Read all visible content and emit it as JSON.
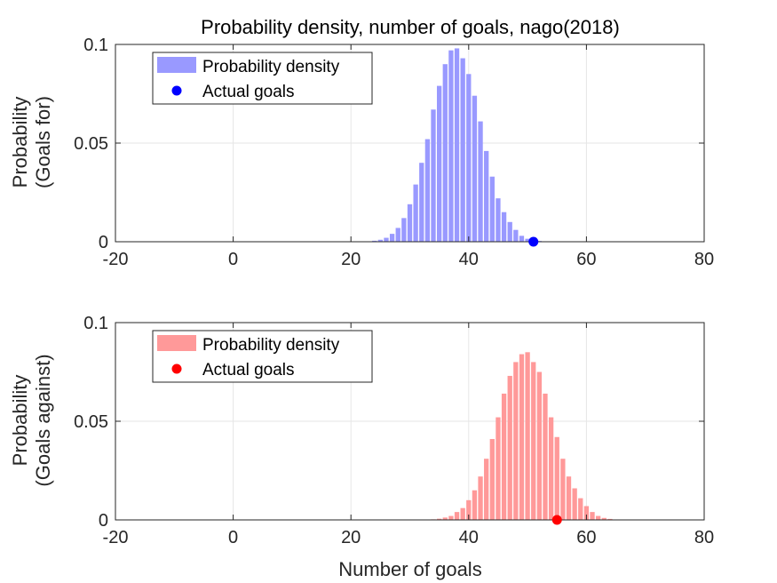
{
  "title": "Probability density, number of goals, nago(2018)",
  "xlabel": "Number of goals",
  "chart_data": [
    {
      "type": "bar",
      "ylabel_lines": [
        "Probability",
        "(Goals for)"
      ],
      "xlim": [
        -20,
        80
      ],
      "ylim": [
        0,
        0.1
      ],
      "xticks": [
        "-20",
        "0",
        "20",
        "40",
        "60",
        "80"
      ],
      "xtick_values": [
        -20,
        0,
        20,
        40,
        60,
        80
      ],
      "yticks": [
        "0",
        "0.05",
        "0.1"
      ],
      "ytick_values": [
        0,
        0.05,
        0.1
      ],
      "grid": true,
      "legend_position": "top-left",
      "bar_color": "#9999ff",
      "point_color": "#0000ff",
      "legend": [
        "Probability density",
        "Actual goals"
      ],
      "series": [
        {
          "name": "Probability density",
          "x": [
            24,
            25,
            26,
            27,
            28,
            29,
            30,
            31,
            32,
            33,
            34,
            35,
            36,
            37,
            38,
            39,
            40,
            41,
            42,
            43,
            44,
            45,
            46,
            47,
            48,
            49,
            50,
            51,
            52
          ],
          "values": [
            0.0005,
            0.001,
            0.002,
            0.004,
            0.007,
            0.012,
            0.019,
            0.029,
            0.04,
            0.052,
            0.067,
            0.079,
            0.09,
            0.097,
            0.098,
            0.093,
            0.085,
            0.074,
            0.061,
            0.046,
            0.033,
            0.022,
            0.015,
            0.01,
            0.006,
            0.003,
            0.0015,
            0.0008,
            0.0004
          ]
        },
        {
          "name": "Actual goals",
          "x": [
            51
          ],
          "values": [
            0
          ]
        }
      ]
    },
    {
      "type": "bar",
      "ylabel_lines": [
        "Probability",
        "(Goals against)"
      ],
      "xlim": [
        -20,
        80
      ],
      "ylim": [
        0,
        0.1
      ],
      "xticks": [
        "-20",
        "0",
        "20",
        "40",
        "60",
        "80"
      ],
      "xtick_values": [
        -20,
        0,
        20,
        40,
        60,
        80
      ],
      "yticks": [
        "0",
        "0.05",
        "0.1"
      ],
      "ytick_values": [
        0,
        0.05,
        0.1
      ],
      "grid": true,
      "legend_position": "top-left",
      "bar_color": "#ff9999",
      "point_color": "#ff0000",
      "legend": [
        "Probability density",
        "Actual goals"
      ],
      "series": [
        {
          "name": "Probability density",
          "x": [
            34,
            35,
            36,
            37,
            38,
            39,
            40,
            41,
            42,
            43,
            44,
            45,
            46,
            47,
            48,
            49,
            50,
            51,
            52,
            53,
            54,
            55,
            56,
            57,
            58,
            59,
            60,
            61,
            62,
            63,
            64
          ],
          "values": [
            0.0003,
            0.0006,
            0.0012,
            0.002,
            0.004,
            0.006,
            0.01,
            0.015,
            0.022,
            0.031,
            0.041,
            0.052,
            0.064,
            0.073,
            0.08,
            0.084,
            0.085,
            0.08,
            0.075,
            0.064,
            0.052,
            0.042,
            0.031,
            0.022,
            0.016,
            0.011,
            0.007,
            0.004,
            0.002,
            0.001,
            0.0005
          ]
        },
        {
          "name": "Actual goals",
          "x": [
            55
          ],
          "values": [
            0
          ]
        }
      ]
    }
  ]
}
